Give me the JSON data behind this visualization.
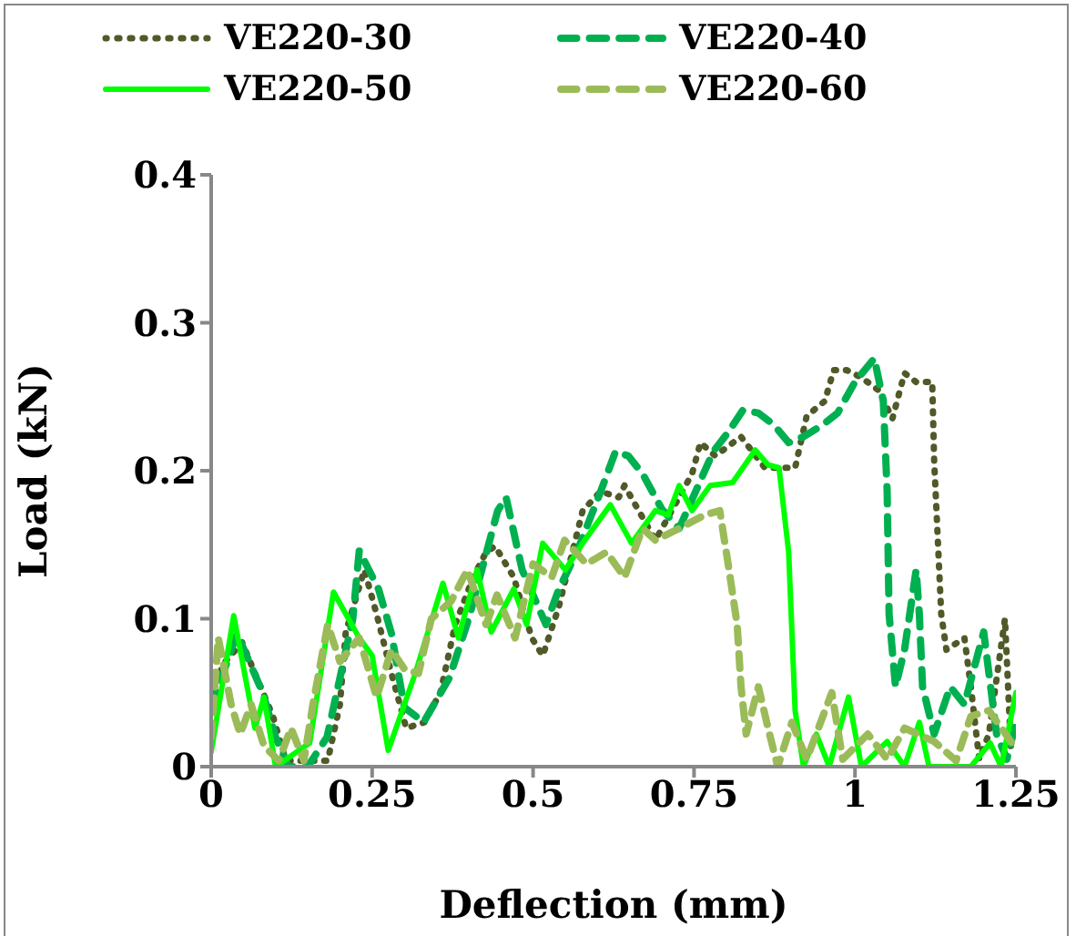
{
  "chart_data": {
    "type": "line",
    "xlabel": "Deflection (mm)",
    "ylabel": "Load (kN)",
    "xlim": [
      0,
      1.25
    ],
    "xticks": [
      0,
      0.25,
      0.5,
      0.75,
      1,
      1.25
    ],
    "ylim": [
      0,
      0.4
    ],
    "yticks": [
      0,
      0.1,
      0.2,
      0.3,
      0.4
    ],
    "grid": false,
    "legend": "top",
    "marker": "none",
    "series": [
      {
        "name": "VE220-30",
        "color": "#4f5a28",
        "line_style": "dotted",
        "x": [
          0,
          0.02,
          0.048,
          0.068,
          0.096,
          0.116,
          0.144,
          0.181,
          0.19,
          0.2,
          0.209,
          0.238,
          0.257,
          0.28,
          0.303,
          0.331,
          0.356,
          0.379,
          0.407,
          0.427,
          0.441,
          0.47,
          0.498,
          0.515,
          0.54,
          0.577,
          0.605,
          0.633,
          0.642,
          0.69,
          0.747,
          0.76,
          0.783,
          0.823,
          0.86,
          0.907,
          0.925,
          0.953,
          0.967,
          0.987,
          1.01,
          1.038,
          1.058,
          1.077,
          1.095,
          1.12,
          1.123,
          1.134,
          1.142,
          1.17,
          1.18,
          1.193,
          1.208,
          1.233,
          1.242
        ],
        "values": [
          0.05,
          0.07,
          0.084,
          0.063,
          0.034,
          0.004,
          0.004,
          0.004,
          0.022,
          0.042,
          0.091,
          0.133,
          0.103,
          0.063,
          0.026,
          0.03,
          0.05,
          0.096,
          0.128,
          0.145,
          0.149,
          0.128,
          0.087,
          0.075,
          0.108,
          0.173,
          0.186,
          0.182,
          0.19,
          0.153,
          0.198,
          0.219,
          0.21,
          0.223,
          0.202,
          0.202,
          0.237,
          0.247,
          0.268,
          0.268,
          0.263,
          0.254,
          0.235,
          0.266,
          0.26,
          0.26,
          0.207,
          0.103,
          0.079,
          0.087,
          0.054,
          0.005,
          0.022,
          0.1,
          0.014
        ]
      },
      {
        "name": "VE220-40",
        "color": "#00b050",
        "line_style": "dashed",
        "x": [
          0,
          0.02,
          0.04,
          0.06,
          0.08,
          0.1,
          0.12,
          0.15,
          0.18,
          0.2,
          0.22,
          0.23,
          0.26,
          0.28,
          0.3,
          0.33,
          0.37,
          0.4,
          0.445,
          0.458,
          0.483,
          0.52,
          0.54,
          0.568,
          0.605,
          0.628,
          0.648,
          0.67,
          0.7,
          0.727,
          0.78,
          0.803,
          0.826,
          0.85,
          0.874,
          0.897,
          0.92,
          0.95,
          0.973,
          1.0,
          1.03,
          1.044,
          1.05,
          1.053,
          1.063,
          1.077,
          1.095,
          1.1,
          1.105,
          1.123,
          1.148,
          1.17,
          1.2,
          1.22,
          1.236,
          1.25
        ],
        "values": [
          0.04,
          0.065,
          0.09,
          0.07,
          0.05,
          0.02,
          0.0,
          0.0,
          0.02,
          0.06,
          0.1,
          0.146,
          0.12,
          0.09,
          0.04,
          0.03,
          0.06,
          0.1,
          0.173,
          0.182,
          0.133,
          0.096,
          0.12,
          0.145,
          0.186,
          0.213,
          0.21,
          0.198,
          0.174,
          0.161,
          0.213,
          0.226,
          0.241,
          0.239,
          0.231,
          0.219,
          0.223,
          0.231,
          0.239,
          0.26,
          0.276,
          0.247,
          0.186,
          0.103,
          0.054,
          0.079,
          0.133,
          0.103,
          0.054,
          0.022,
          0.054,
          0.042,
          0.091,
          0.022,
          0.005,
          0.03
        ]
      },
      {
        "name": "VE220-50",
        "color": "#00ff00",
        "line_style": "solid",
        "x": [
          0,
          0.035,
          0.068,
          0.082,
          0.1,
          0.153,
          0.19,
          0.23,
          0.25,
          0.275,
          0.317,
          0.36,
          0.384,
          0.413,
          0.435,
          0.47,
          0.49,
          0.515,
          0.55,
          0.577,
          0.62,
          0.653,
          0.69,
          0.71,
          0.727,
          0.747,
          0.775,
          0.81,
          0.845,
          0.865,
          0.882,
          0.897,
          0.907,
          0.92,
          0.94,
          0.96,
          0.99,
          1.01,
          1.05,
          1.077,
          1.1,
          1.115,
          1.18,
          1.21,
          1.227,
          1.25
        ],
        "values": [
          0.01,
          0.102,
          0.026,
          0.047,
          0.0,
          0.016,
          0.118,
          0.087,
          0.075,
          0.011,
          0.063,
          0.124,
          0.087,
          0.133,
          0.091,
          0.12,
          0.096,
          0.151,
          0.133,
          0.151,
          0.177,
          0.151,
          0.173,
          0.17,
          0.19,
          0.173,
          0.19,
          0.192,
          0.214,
          0.204,
          0.202,
          0.145,
          0.038,
          0.0,
          0.022,
          0.0,
          0.047,
          0.0,
          0.017,
          0.0,
          0.03,
          0.0,
          0.0,
          0.016,
          0.0,
          0.05
        ]
      },
      {
        "name": "VE220-60",
        "color": "#9bbb59",
        "line_style": "dashed",
        "x": [
          0,
          0.011,
          0.031,
          0.045,
          0.062,
          0.082,
          0.105,
          0.124,
          0.144,
          0.158,
          0.181,
          0.2,
          0.23,
          0.257,
          0.28,
          0.3,
          0.322,
          0.342,
          0.373,
          0.398,
          0.427,
          0.444,
          0.472,
          0.5,
          0.529,
          0.549,
          0.583,
          0.614,
          0.642,
          0.67,
          0.69,
          0.727,
          0.766,
          0.79,
          0.803,
          0.817,
          0.823,
          0.831,
          0.85,
          0.865,
          0.88,
          0.902,
          0.925,
          0.964,
          0.981,
          1.02,
          1.05,
          1.077,
          1.123,
          1.157,
          1.18,
          1.208,
          1.247
        ],
        "values": [
          0.02,
          0.087,
          0.042,
          0.022,
          0.042,
          0.014,
          0.004,
          0.026,
          0.004,
          0.042,
          0.096,
          0.071,
          0.087,
          0.047,
          0.079,
          0.066,
          0.063,
          0.1,
          0.112,
          0.133,
          0.096,
          0.116,
          0.087,
          0.137,
          0.128,
          0.153,
          0.137,
          0.145,
          0.128,
          0.161,
          0.153,
          0.161,
          0.17,
          0.173,
          0.137,
          0.096,
          0.054,
          0.022,
          0.054,
          0.026,
          0.0,
          0.03,
          0.005,
          0.05,
          0.005,
          0.022,
          0.005,
          0.026,
          0.017,
          0.004,
          0.034,
          0.038,
          0.014
        ]
      }
    ]
  }
}
